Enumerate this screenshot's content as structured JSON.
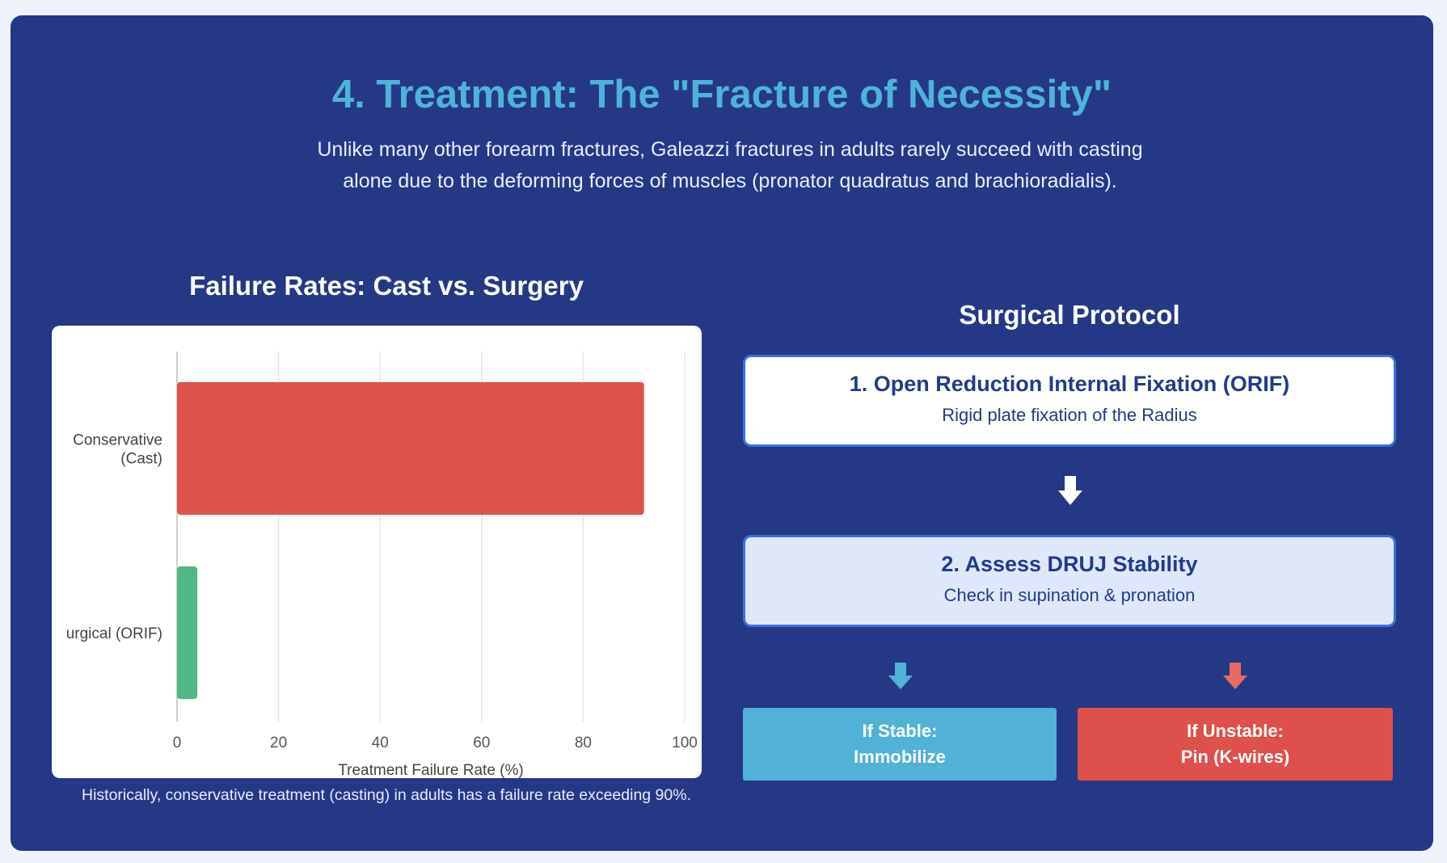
{
  "heading": "4. Treatment: The \"Fracture of Necessity\"",
  "intro": "Unlike many other forearm fractures, Galeazzi fractures in adults rarely succeed with casting alone due to the deforming forces of muscles (pronator quadratus and brachioradialis).",
  "chart_section_title": "Failure Rates: Cast vs. Surgery",
  "caption": "Historically, conservative treatment (casting) in adults has a failure rate exceeding 90%.",
  "chart_data": {
    "type": "bar",
    "orientation": "horizontal",
    "categories": [
      [
        "Conservative",
        "(Cast)"
      ],
      [
        "urgical (ORIF)"
      ]
    ],
    "values": [
      92,
      4
    ],
    "colors": [
      "#df534d",
      "#52b885"
    ],
    "xlabel": "Treatment Failure Rate (%)",
    "xlim": [
      0,
      100
    ],
    "xticks": [
      0,
      20,
      40,
      60,
      80,
      100
    ],
    "grid": true
  },
  "protocol": {
    "title": "Surgical Protocol",
    "steps": [
      {
        "title": "1. Open Reduction Internal Fixation (ORIF)",
        "desc": "Rigid plate fixation of the Radius"
      },
      {
        "title": "2. Assess DRUJ Stability",
        "desc": "Check in supination & pronation"
      }
    ],
    "outcomes": {
      "stable": {
        "line1": "If Stable:",
        "line2": "Immobilize"
      },
      "unstable": {
        "line1": "If Unstable:",
        "line2": "Pin (K-wires)"
      }
    },
    "colors": {
      "arrow_main": "#ffffff",
      "arrow_stable": "#52b1d6",
      "arrow_unstable": "#e76a66"
    }
  }
}
